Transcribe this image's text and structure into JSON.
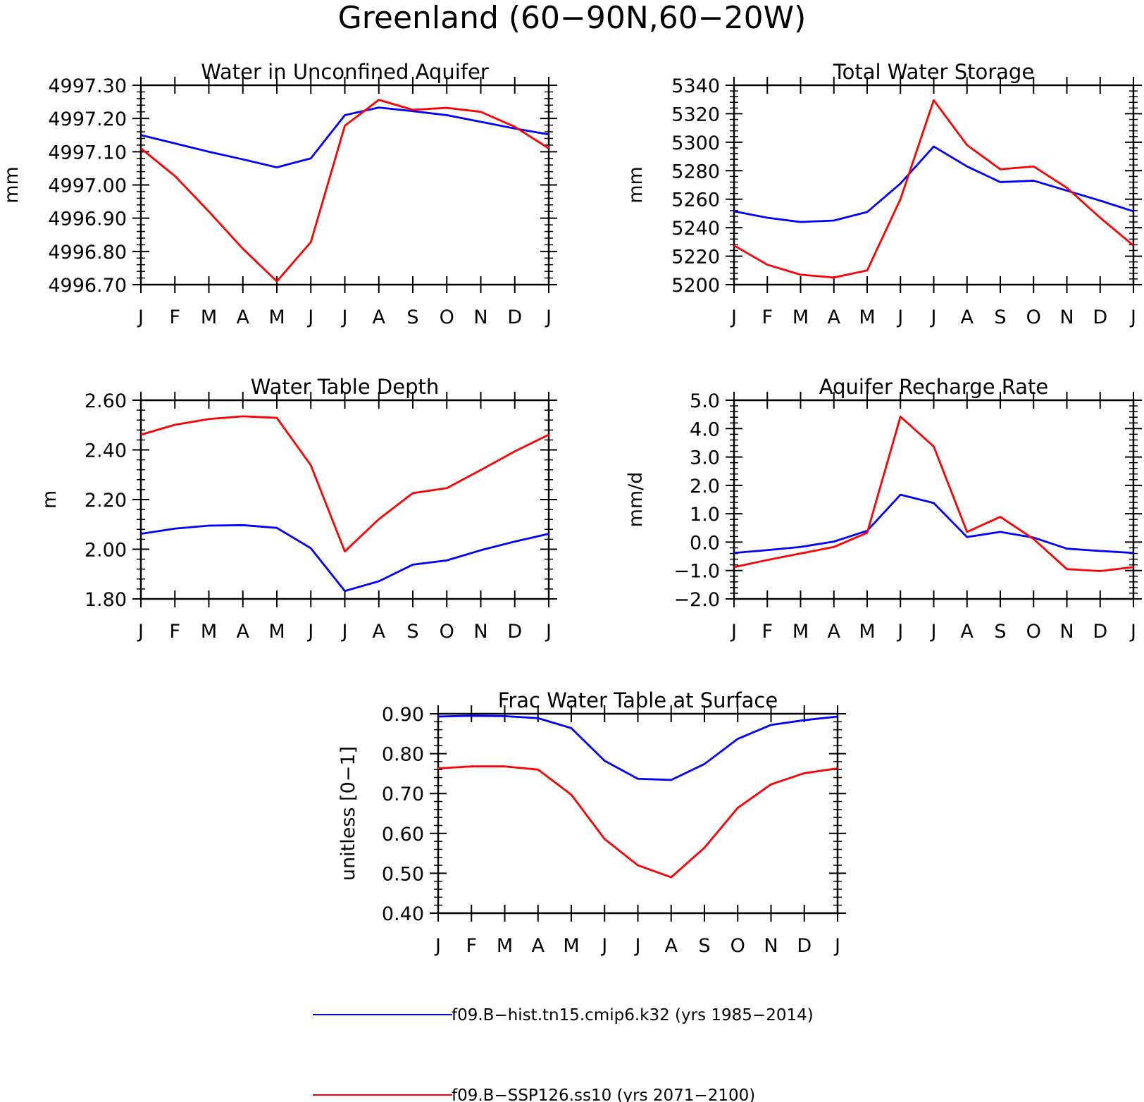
{
  "figure": {
    "title": "Greenland (60−90N,60−20W)"
  },
  "legend": [
    {
      "label": "f09.B−hist.tn15.cmip6.k32 (yrs 1985−2014)",
      "color": "#0000ff"
    },
    {
      "label": "f09.B−SSP126.ss10 (yrs 2071−2100)",
      "color": "#ff0000"
    }
  ],
  "chart_data": [
    {
      "type": "line",
      "title": "Water in Unconfined Aquifer",
      "xlabel": "",
      "ylabel": "mm",
      "categories": [
        "J",
        "F",
        "M",
        "A",
        "M",
        "J",
        "J",
        "A",
        "S",
        "O",
        "N",
        "D",
        "J"
      ],
      "ylim": [
        4996.7,
        4997.3
      ],
      "yticks": [
        4996.7,
        4996.8,
        4996.9,
        4997.0,
        4997.1,
        4997.2,
        4997.3
      ],
      "ytick_labels": [
        "4996.70",
        "4996.80",
        "4996.90",
        "4997.00",
        "4997.10",
        "4997.20",
        "4997.30"
      ],
      "series": [
        {
          "color": "#0000ff",
          "values": [
            4997.15,
            4997.125,
            4997.1,
            4997.077,
            4997.053,
            4997.08,
            4997.21,
            4997.233,
            4997.222,
            4997.21,
            4997.19,
            4997.17,
            4997.152
          ]
        },
        {
          "color": "#ff0000",
          "values": [
            4997.11,
            4997.027,
            4996.92,
            4996.808,
            4996.71,
            4996.828,
            4997.178,
            4997.256,
            4997.226,
            4997.232,
            4997.22,
            4997.175,
            4997.11
          ]
        }
      ]
    },
    {
      "type": "line",
      "title": "Total Water Storage",
      "xlabel": "",
      "ylabel": "mm",
      "categories": [
        "J",
        "F",
        "M",
        "A",
        "M",
        "J",
        "J",
        "A",
        "S",
        "O",
        "N",
        "D",
        "J"
      ],
      "ylim": [
        5200,
        5340
      ],
      "yticks": [
        5200,
        5220,
        5240,
        5260,
        5280,
        5300,
        5320,
        5340
      ],
      "ytick_labels": [
        "5200",
        "5220",
        "5240",
        "5260",
        "5280",
        "5300",
        "5320",
        "5340"
      ],
      "series": [
        {
          "color": "#0000ff",
          "values": [
            5251.5,
            5247,
            5244,
            5245,
            5251,
            5271,
            5297,
            5283,
            5272,
            5273,
            5266,
            5259,
            5251.5
          ]
        },
        {
          "color": "#ff0000",
          "values": [
            5227.5,
            5214,
            5207,
            5205,
            5210,
            5260,
            5329.5,
            5298,
            5281,
            5283,
            5268,
            5247,
            5227.5
          ]
        }
      ]
    },
    {
      "type": "line",
      "title": "Water Table Depth",
      "xlabel": "",
      "ylabel": "m",
      "categories": [
        "J",
        "F",
        "M",
        "A",
        "M",
        "J",
        "J",
        "A",
        "S",
        "O",
        "N",
        "D",
        "J"
      ],
      "ylim": [
        1.8,
        2.6
      ],
      "yticks": [
        1.8,
        2.0,
        2.2,
        2.4,
        2.6
      ],
      "ytick_labels": [
        "1.80",
        "2.00",
        "2.20",
        "2.40",
        "2.60"
      ],
      "series": [
        {
          "color": "#0000ff",
          "values": [
            2.062,
            2.083,
            2.095,
            2.097,
            2.086,
            2.004,
            1.832,
            1.871,
            1.938,
            1.955,
            1.996,
            2.031,
            2.062
          ]
        },
        {
          "color": "#ff0000",
          "values": [
            2.461,
            2.501,
            2.524,
            2.535,
            2.529,
            2.338,
            1.991,
            2.121,
            2.226,
            2.246,
            2.319,
            2.394,
            2.461
          ]
        }
      ]
    },
    {
      "type": "line",
      "title": "Aquifer Recharge Rate",
      "xlabel": "",
      "ylabel": "mm/d",
      "categories": [
        "J",
        "F",
        "M",
        "A",
        "M",
        "J",
        "J",
        "A",
        "S",
        "O",
        "N",
        "D",
        "J"
      ],
      "ylim": [
        -2.0,
        5.0
      ],
      "yticks": [
        -2.0,
        -1.0,
        0.0,
        1.0,
        2.0,
        3.0,
        4.0,
        5.0
      ],
      "ytick_labels": [
        "−2.0",
        "−1.0",
        "0.0",
        "1.0",
        "2.0",
        "3.0",
        "4.0",
        "5.0"
      ],
      "series": [
        {
          "color": "#0000ff",
          "values": [
            -0.38,
            -0.28,
            -0.17,
            0.02,
            0.4,
            1.67,
            1.38,
            0.18,
            0.36,
            0.16,
            -0.23,
            -0.31,
            -0.38
          ]
        },
        {
          "color": "#ff0000",
          "values": [
            -0.88,
            -0.63,
            -0.4,
            -0.17,
            0.33,
            4.42,
            3.37,
            0.36,
            0.89,
            0.11,
            -0.95,
            -1.02,
            -0.88
          ]
        }
      ]
    },
    {
      "type": "line",
      "title": "Frac Water Table at Surface",
      "xlabel": "",
      "ylabel": "unitless [0−1]",
      "categories": [
        "J",
        "F",
        "M",
        "A",
        "M",
        "J",
        "J",
        "A",
        "S",
        "O",
        "N",
        "D",
        "J"
      ],
      "ylim": [
        0.4,
        0.9
      ],
      "yticks": [
        0.4,
        0.5,
        0.6,
        0.7,
        0.8,
        0.9
      ],
      "ytick_labels": [
        "0.40",
        "0.50",
        "0.60",
        "0.70",
        "0.80",
        "0.90"
      ],
      "series": [
        {
          "color": "#0000ff",
          "values": [
            0.893,
            0.895,
            0.894,
            0.889,
            0.864,
            0.782,
            0.737,
            0.734,
            0.774,
            0.837,
            0.872,
            0.884,
            0.893
          ]
        },
        {
          "color": "#ff0000",
          "values": [
            0.763,
            0.768,
            0.768,
            0.76,
            0.697,
            0.586,
            0.52,
            0.49,
            0.564,
            0.664,
            0.723,
            0.751,
            0.763
          ]
        }
      ]
    }
  ]
}
